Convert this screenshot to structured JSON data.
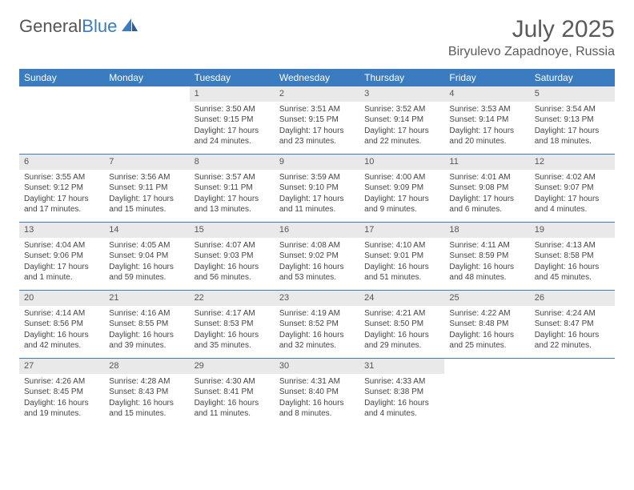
{
  "logo": {
    "part1": "General",
    "part2": "Blue"
  },
  "title": "July 2025",
  "location": "Biryulevo Zapadnoye, Russia",
  "colors": {
    "header_bg": "#3b7bbf",
    "header_text": "#ffffff",
    "daynum_bg": "#e9e9e9",
    "rule": "#3b7bbf",
    "text": "#444444"
  },
  "day_names": [
    "Sunday",
    "Monday",
    "Tuesday",
    "Wednesday",
    "Thursday",
    "Friday",
    "Saturday"
  ],
  "weeks": [
    [
      null,
      null,
      {
        "n": "1",
        "sr": "Sunrise: 3:50 AM",
        "ss": "Sunset: 9:15 PM",
        "dl": "Daylight: 17 hours and 24 minutes."
      },
      {
        "n": "2",
        "sr": "Sunrise: 3:51 AM",
        "ss": "Sunset: 9:15 PM",
        "dl": "Daylight: 17 hours and 23 minutes."
      },
      {
        "n": "3",
        "sr": "Sunrise: 3:52 AM",
        "ss": "Sunset: 9:14 PM",
        "dl": "Daylight: 17 hours and 22 minutes."
      },
      {
        "n": "4",
        "sr": "Sunrise: 3:53 AM",
        "ss": "Sunset: 9:14 PM",
        "dl": "Daylight: 17 hours and 20 minutes."
      },
      {
        "n": "5",
        "sr": "Sunrise: 3:54 AM",
        "ss": "Sunset: 9:13 PM",
        "dl": "Daylight: 17 hours and 18 minutes."
      }
    ],
    [
      {
        "n": "6",
        "sr": "Sunrise: 3:55 AM",
        "ss": "Sunset: 9:12 PM",
        "dl": "Daylight: 17 hours and 17 minutes."
      },
      {
        "n": "7",
        "sr": "Sunrise: 3:56 AM",
        "ss": "Sunset: 9:11 PM",
        "dl": "Daylight: 17 hours and 15 minutes."
      },
      {
        "n": "8",
        "sr": "Sunrise: 3:57 AM",
        "ss": "Sunset: 9:11 PM",
        "dl": "Daylight: 17 hours and 13 minutes."
      },
      {
        "n": "9",
        "sr": "Sunrise: 3:59 AM",
        "ss": "Sunset: 9:10 PM",
        "dl": "Daylight: 17 hours and 11 minutes."
      },
      {
        "n": "10",
        "sr": "Sunrise: 4:00 AM",
        "ss": "Sunset: 9:09 PM",
        "dl": "Daylight: 17 hours and 9 minutes."
      },
      {
        "n": "11",
        "sr": "Sunrise: 4:01 AM",
        "ss": "Sunset: 9:08 PM",
        "dl": "Daylight: 17 hours and 6 minutes."
      },
      {
        "n": "12",
        "sr": "Sunrise: 4:02 AM",
        "ss": "Sunset: 9:07 PM",
        "dl": "Daylight: 17 hours and 4 minutes."
      }
    ],
    [
      {
        "n": "13",
        "sr": "Sunrise: 4:04 AM",
        "ss": "Sunset: 9:06 PM",
        "dl": "Daylight: 17 hours and 1 minute."
      },
      {
        "n": "14",
        "sr": "Sunrise: 4:05 AM",
        "ss": "Sunset: 9:04 PM",
        "dl": "Daylight: 16 hours and 59 minutes."
      },
      {
        "n": "15",
        "sr": "Sunrise: 4:07 AM",
        "ss": "Sunset: 9:03 PM",
        "dl": "Daylight: 16 hours and 56 minutes."
      },
      {
        "n": "16",
        "sr": "Sunrise: 4:08 AM",
        "ss": "Sunset: 9:02 PM",
        "dl": "Daylight: 16 hours and 53 minutes."
      },
      {
        "n": "17",
        "sr": "Sunrise: 4:10 AM",
        "ss": "Sunset: 9:01 PM",
        "dl": "Daylight: 16 hours and 51 minutes."
      },
      {
        "n": "18",
        "sr": "Sunrise: 4:11 AM",
        "ss": "Sunset: 8:59 PM",
        "dl": "Daylight: 16 hours and 48 minutes."
      },
      {
        "n": "19",
        "sr": "Sunrise: 4:13 AM",
        "ss": "Sunset: 8:58 PM",
        "dl": "Daylight: 16 hours and 45 minutes."
      }
    ],
    [
      {
        "n": "20",
        "sr": "Sunrise: 4:14 AM",
        "ss": "Sunset: 8:56 PM",
        "dl": "Daylight: 16 hours and 42 minutes."
      },
      {
        "n": "21",
        "sr": "Sunrise: 4:16 AM",
        "ss": "Sunset: 8:55 PM",
        "dl": "Daylight: 16 hours and 39 minutes."
      },
      {
        "n": "22",
        "sr": "Sunrise: 4:17 AM",
        "ss": "Sunset: 8:53 PM",
        "dl": "Daylight: 16 hours and 35 minutes."
      },
      {
        "n": "23",
        "sr": "Sunrise: 4:19 AM",
        "ss": "Sunset: 8:52 PM",
        "dl": "Daylight: 16 hours and 32 minutes."
      },
      {
        "n": "24",
        "sr": "Sunrise: 4:21 AM",
        "ss": "Sunset: 8:50 PM",
        "dl": "Daylight: 16 hours and 29 minutes."
      },
      {
        "n": "25",
        "sr": "Sunrise: 4:22 AM",
        "ss": "Sunset: 8:48 PM",
        "dl": "Daylight: 16 hours and 25 minutes."
      },
      {
        "n": "26",
        "sr": "Sunrise: 4:24 AM",
        "ss": "Sunset: 8:47 PM",
        "dl": "Daylight: 16 hours and 22 minutes."
      }
    ],
    [
      {
        "n": "27",
        "sr": "Sunrise: 4:26 AM",
        "ss": "Sunset: 8:45 PM",
        "dl": "Daylight: 16 hours and 19 minutes."
      },
      {
        "n": "28",
        "sr": "Sunrise: 4:28 AM",
        "ss": "Sunset: 8:43 PM",
        "dl": "Daylight: 16 hours and 15 minutes."
      },
      {
        "n": "29",
        "sr": "Sunrise: 4:30 AM",
        "ss": "Sunset: 8:41 PM",
        "dl": "Daylight: 16 hours and 11 minutes."
      },
      {
        "n": "30",
        "sr": "Sunrise: 4:31 AM",
        "ss": "Sunset: 8:40 PM",
        "dl": "Daylight: 16 hours and 8 minutes."
      },
      {
        "n": "31",
        "sr": "Sunrise: 4:33 AM",
        "ss": "Sunset: 8:38 PM",
        "dl": "Daylight: 16 hours and 4 minutes."
      },
      null,
      null
    ]
  ]
}
